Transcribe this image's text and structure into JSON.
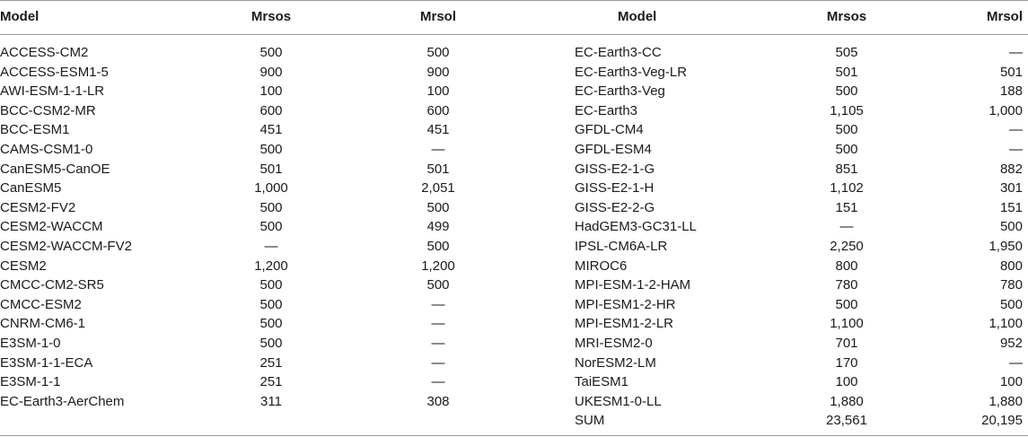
{
  "headers": {
    "model_left": "Model",
    "mrsos_left": "Mrsos",
    "mrsol_left": "Mrsol",
    "model_right": "Model",
    "mrsos_right": "Mrsos",
    "mrsol_right": "Mrsol"
  },
  "left_rows": [
    {
      "model": "ACCESS-CM2",
      "mrsos": "500",
      "mrsol": "500"
    },
    {
      "model": "ACCESS-ESM1-5",
      "mrsos": "900",
      "mrsol": "900"
    },
    {
      "model": "AWI-ESM-1-1-LR",
      "mrsos": "100",
      "mrsol": "100"
    },
    {
      "model": "BCC-CSM2-MR",
      "mrsos": "600",
      "mrsol": "600"
    },
    {
      "model": "BCC-ESM1",
      "mrsos": "451",
      "mrsol": "451"
    },
    {
      "model": "CAMS-CSM1-0",
      "mrsos": "500",
      "mrsol": "—"
    },
    {
      "model": "CanESM5-CanOE",
      "mrsos": "501",
      "mrsol": "501"
    },
    {
      "model": "CanESM5",
      "mrsos": "1,000",
      "mrsol": "2,051"
    },
    {
      "model": "CESM2-FV2",
      "mrsos": "500",
      "mrsol": "500"
    },
    {
      "model": "CESM2-WACCM",
      "mrsos": "500",
      "mrsol": "499"
    },
    {
      "model": "CESM2-WACCM-FV2",
      "mrsos": "—",
      "mrsol": "500"
    },
    {
      "model": "CESM2",
      "mrsos": "1,200",
      "mrsol": "1,200"
    },
    {
      "model": "CMCC-CM2-SR5",
      "mrsos": "500",
      "mrsol": "500"
    },
    {
      "model": "CMCC-ESM2",
      "mrsos": "500",
      "mrsol": "—"
    },
    {
      "model": "CNRM-CM6-1",
      "mrsos": "500",
      "mrsol": "—"
    },
    {
      "model": "E3SM-1-0",
      "mrsos": "500",
      "mrsol": "—"
    },
    {
      "model": "E3SM-1-1-ECA",
      "mrsos": "251",
      "mrsol": "—"
    },
    {
      "model": "E3SM-1-1",
      "mrsos": "251",
      "mrsol": "—"
    },
    {
      "model": "EC-Earth3-AerChem",
      "mrsos": "311",
      "mrsol": "308"
    }
  ],
  "right_rows": [
    {
      "model": "EC-Earth3-CC",
      "mrsos": "505",
      "mrsol": "—"
    },
    {
      "model": "EC-Earth3-Veg-LR",
      "mrsos": "501",
      "mrsol": "501"
    },
    {
      "model": "EC-Earth3-Veg",
      "mrsos": "500",
      "mrsol": "188"
    },
    {
      "model": "EC-Earth3",
      "mrsos": "1,105",
      "mrsol": "1,000"
    },
    {
      "model": "GFDL-CM4",
      "mrsos": "500",
      "mrsol": "—"
    },
    {
      "model": "GFDL-ESM4",
      "mrsos": "500",
      "mrsol": "—"
    },
    {
      "model": "GISS-E2-1-G",
      "mrsos": "851",
      "mrsol": "882"
    },
    {
      "model": "GISS-E2-1-H",
      "mrsos": "1,102",
      "mrsol": "301"
    },
    {
      "model": "GISS-E2-2-G",
      "mrsos": "151",
      "mrsol": "151"
    },
    {
      "model": "HadGEM3-GC31-LL",
      "mrsos": "—",
      "mrsol": "500"
    },
    {
      "model": "IPSL-CM6A-LR",
      "mrsos": "2,250",
      "mrsol": "1,950"
    },
    {
      "model": "MIROC6",
      "mrsos": "800",
      "mrsol": "800"
    },
    {
      "model": "MPI-ESM-1-2-HAM",
      "mrsos": "780",
      "mrsol": "780"
    },
    {
      "model": "MPI-ESM1-2-HR",
      "mrsos": "500",
      "mrsol": "500"
    },
    {
      "model": "MPI-ESM1-2-LR",
      "mrsos": "1,100",
      "mrsol": "1,100"
    },
    {
      "model": "MRI-ESM2-0",
      "mrsos": "701",
      "mrsol": "952"
    },
    {
      "model": "NorESM2-LM",
      "mrsos": "170",
      "mrsol": "—"
    },
    {
      "model": "TaiESM1",
      "mrsos": "100",
      "mrsol": "100"
    },
    {
      "model": "UKESM1-0-LL",
      "mrsos": "1,880",
      "mrsol": "1,880"
    },
    {
      "model": "SUM",
      "mrsos": "23,561",
      "mrsol": "20,195"
    }
  ]
}
